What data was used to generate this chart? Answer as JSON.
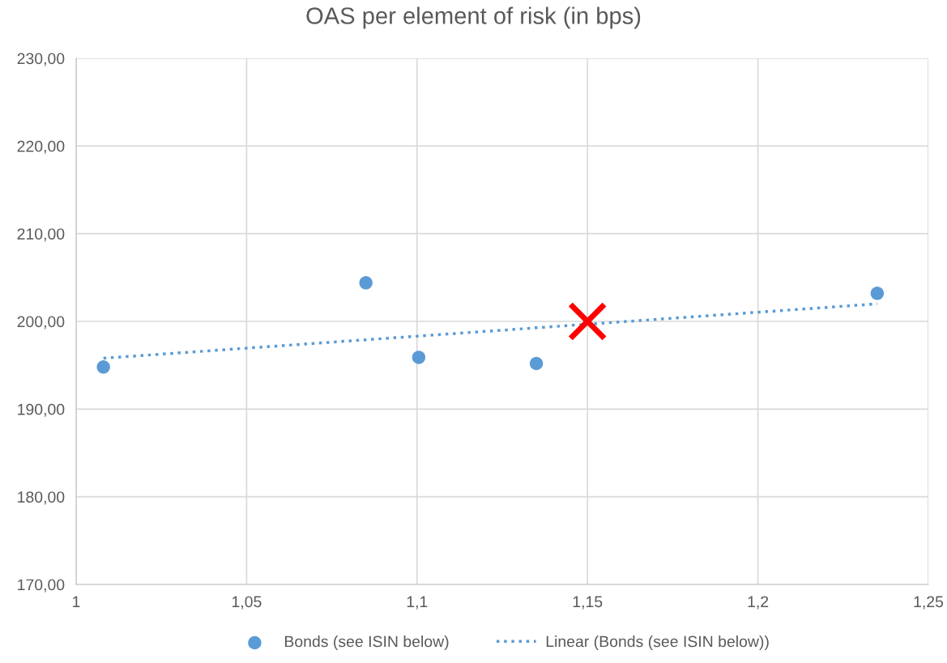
{
  "chart_data": {
    "type": "scatter",
    "title": "OAS per element of risk (in bps)",
    "series": [
      {
        "name": "Bonds (see ISIN below)",
        "type": "scatter",
        "marker": "circle",
        "color": "#5b9bd5",
        "x": [
          1.008,
          1.085,
          1.1005,
          1.135,
          1.235
        ],
        "values": [
          194.8,
          204.4,
          195.9,
          195.2,
          203.2
        ]
      },
      {
        "name": "Linear (Bonds (see ISIN below))",
        "type": "line",
        "line_style": "dotted",
        "color": "#5b9bd5",
        "x": [
          1.008,
          1.235
        ],
        "values": [
          195.8,
          202.0
        ]
      },
      {
        "type": "scatter",
        "marker": "cross",
        "color": "#ff0000",
        "x": [
          1.15
        ],
        "values": [
          200.0
        ]
      }
    ],
    "xlim": [
      1,
      1.25
    ],
    "xticks": [
      1,
      {
        "value": 1.05,
        "label": "1,05"
      },
      {
        "value": 1.1,
        "label": "1,1"
      },
      {
        "value": 1.15,
        "label": "1,15"
      },
      {
        "value": 1.2,
        "label": "1,2"
      },
      {
        "value": 1.25,
        "label": "1,25"
      }
    ],
    "ylim": [
      170,
      230
    ],
    "yticks": [
      {
        "value": 170,
        "label": "170,00"
      },
      {
        "value": 180,
        "label": "180,00"
      },
      {
        "value": 190,
        "label": "190,00"
      },
      {
        "value": 200,
        "label": "200,00"
      },
      {
        "value": 210,
        "label": "210,00"
      },
      {
        "value": 220,
        "label": "220,00"
      },
      {
        "value": 230,
        "label": "230,00"
      }
    ],
    "grid": true,
    "legend": "bottom"
  }
}
